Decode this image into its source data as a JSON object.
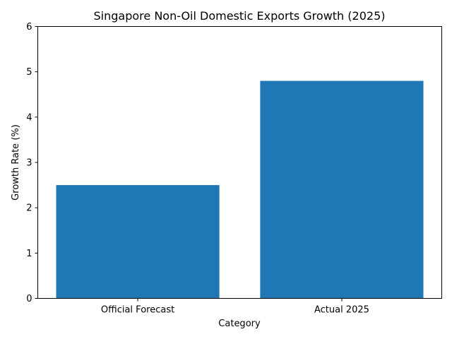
{
  "chart_data": {
    "type": "bar",
    "title": "Singapore Non-Oil Domestic Exports Growth (2025)",
    "xlabel": "Category",
    "ylabel": "Growth Rate (%)",
    "categories": [
      "Official Forecast",
      "Actual 2025"
    ],
    "values": [
      2.5,
      4.8
    ],
    "ylim": [
      0,
      6
    ],
    "yticks": [
      "0",
      "1",
      "2",
      "3",
      "4",
      "5",
      "6"
    ],
    "grid": false,
    "bar_color": "#1f77b4"
  }
}
